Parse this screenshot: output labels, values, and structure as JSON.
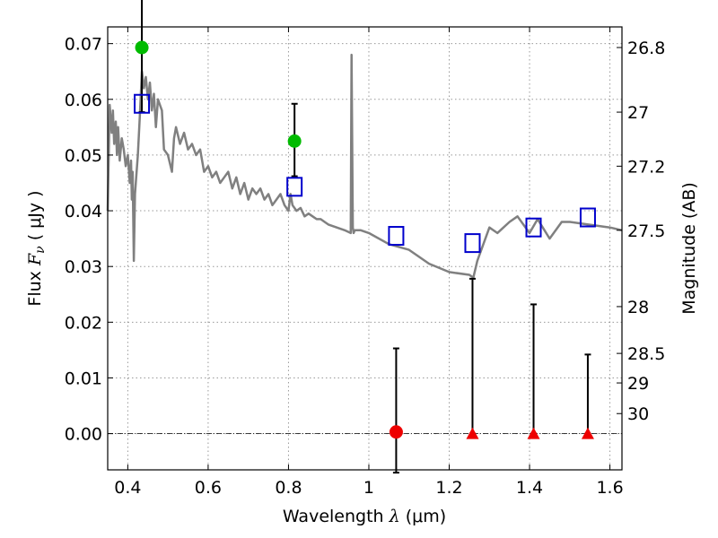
{
  "chart_data": {
    "type": "scatter",
    "title": "",
    "xlabel": {
      "prefix": "Wavelength  ",
      "symbol": "λ",
      "unit": " (μm)"
    },
    "ylabel": {
      "prefix": "Flux  ",
      "symbol": "F",
      "subscript": "ν",
      "unit": "  ( μJy )"
    },
    "y2label": "Magnitude (AB)",
    "xlim": [
      0.35,
      1.63
    ],
    "ylim": [
      -0.0065,
      0.073
    ],
    "grid": true,
    "x_ticks": [
      {
        "value": 0.4,
        "label": "0.4"
      },
      {
        "value": 0.6,
        "label": "0.6"
      },
      {
        "value": 0.8,
        "label": "0.8"
      },
      {
        "value": 1.0,
        "label": "1"
      },
      {
        "value": 1.2,
        "label": "1.2"
      },
      {
        "value": 1.4,
        "label": "1.4"
      },
      {
        "value": 1.6,
        "label": "1.6"
      }
    ],
    "y_ticks": [
      {
        "value": 0.0,
        "label": "0.00"
      },
      {
        "value": 0.01,
        "label": "0.01"
      },
      {
        "value": 0.02,
        "label": "0.02"
      },
      {
        "value": 0.03,
        "label": "0.03"
      },
      {
        "value": 0.04,
        "label": "0.04"
      },
      {
        "value": 0.05,
        "label": "0.05"
      },
      {
        "value": 0.06,
        "label": "0.06"
      },
      {
        "value": 0.07,
        "label": "0.07"
      }
    ],
    "y2_ticks": [
      {
        "flux": 0.0693,
        "label": "26.8"
      },
      {
        "flux": 0.0577,
        "label": "27"
      },
      {
        "flux": 0.048,
        "label": "27.2"
      },
      {
        "flux": 0.0365,
        "label": "27.5"
      },
      {
        "flux": 0.0228,
        "label": "28"
      },
      {
        "flux": 0.0144,
        "label": "28.5"
      },
      {
        "flux": 0.0091,
        "label": "29"
      },
      {
        "flux": 0.0036,
        "label": "30"
      }
    ],
    "zero_line": 0.0,
    "colors": {
      "sed": "#808080",
      "model_photometry": "#0000cc",
      "detection": "#00bb00",
      "nondetection": "#ee0000",
      "errorbar": "#000000",
      "grid": "#999999"
    },
    "sed_line": {
      "x": [
        0.35,
        0.355,
        0.36,
        0.363,
        0.366,
        0.37,
        0.373,
        0.376,
        0.38,
        0.385,
        0.39,
        0.395,
        0.4,
        0.405,
        0.408,
        0.41,
        0.412,
        0.415,
        0.418,
        0.42,
        0.425,
        0.43,
        0.435,
        0.44,
        0.445,
        0.45,
        0.455,
        0.46,
        0.465,
        0.47,
        0.475,
        0.48,
        0.485,
        0.49,
        0.5,
        0.51,
        0.515,
        0.52,
        0.53,
        0.54,
        0.55,
        0.56,
        0.57,
        0.58,
        0.59,
        0.6,
        0.61,
        0.62,
        0.63,
        0.64,
        0.65,
        0.66,
        0.67,
        0.68,
        0.69,
        0.7,
        0.71,
        0.72,
        0.73,
        0.74,
        0.75,
        0.76,
        0.77,
        0.78,
        0.79,
        0.8,
        0.805,
        0.81,
        0.82,
        0.83,
        0.84,
        0.85,
        0.86,
        0.87,
        0.88,
        0.89,
        0.9,
        0.92,
        0.94,
        0.955,
        0.957,
        0.96,
        0.962,
        0.965,
        0.98,
        1.0,
        1.05,
        1.1,
        1.15,
        1.2,
        1.25,
        1.26,
        1.27,
        1.3,
        1.32,
        1.35,
        1.37,
        1.4,
        1.42,
        1.45,
        1.48,
        1.5,
        1.55,
        1.6,
        1.63
      ],
      "y": [
        0.04,
        0.059,
        0.054,
        0.058,
        0.052,
        0.056,
        0.05,
        0.055,
        0.049,
        0.053,
        0.051,
        0.048,
        0.05,
        0.045,
        0.049,
        0.042,
        0.047,
        0.031,
        0.043,
        0.045,
        0.05,
        0.057,
        0.065,
        0.062,
        0.064,
        0.06,
        0.063,
        0.058,
        0.061,
        0.055,
        0.06,
        0.059,
        0.058,
        0.051,
        0.05,
        0.047,
        0.053,
        0.055,
        0.052,
        0.054,
        0.051,
        0.052,
        0.05,
        0.051,
        0.047,
        0.048,
        0.046,
        0.047,
        0.045,
        0.046,
        0.047,
        0.044,
        0.046,
        0.043,
        0.045,
        0.042,
        0.044,
        0.043,
        0.044,
        0.042,
        0.043,
        0.041,
        0.042,
        0.043,
        0.041,
        0.04,
        0.043,
        0.041,
        0.04,
        0.0405,
        0.039,
        0.0395,
        0.039,
        0.0385,
        0.0385,
        0.038,
        0.0375,
        0.037,
        0.0365,
        0.036,
        0.068,
        0.037,
        0.036,
        0.0365,
        0.0365,
        0.036,
        0.034,
        0.033,
        0.0305,
        0.029,
        0.0285,
        0.028,
        0.031,
        0.037,
        0.036,
        0.038,
        0.039,
        0.036,
        0.0385,
        0.035,
        0.038,
        0.038,
        0.0375,
        0.037,
        0.0365
      ]
    },
    "model_photometry": [
      {
        "x": 0.435,
        "y": 0.0592
      },
      {
        "x": 0.815,
        "y": 0.0443
      },
      {
        "x": 1.068,
        "y": 0.0355
      },
      {
        "x": 1.258,
        "y": 0.0342
      },
      {
        "x": 1.41,
        "y": 0.037
      },
      {
        "x": 1.545,
        "y": 0.0388
      }
    ],
    "detections": [
      {
        "x": 0.435,
        "y": 0.0693,
        "err_low": 0.0577,
        "err_high": 0.078
      },
      {
        "x": 0.815,
        "y": 0.0525,
        "err_low": 0.0462,
        "err_high": 0.0592
      }
    ],
    "nondetections": [
      {
        "x": 1.068,
        "y": 0.0003,
        "marker": "circle",
        "err_low": -0.007,
        "err_high": 0.0153
      },
      {
        "x": 1.258,
        "y": 0.0,
        "marker": "triangle",
        "err_low": 0.0,
        "err_high": 0.0278
      },
      {
        "x": 1.41,
        "y": 0.0,
        "marker": "triangle",
        "err_low": 0.0,
        "err_high": 0.0232
      },
      {
        "x": 1.545,
        "y": 0.0,
        "marker": "triangle",
        "err_low": 0.0,
        "err_high": 0.0142
      }
    ]
  }
}
